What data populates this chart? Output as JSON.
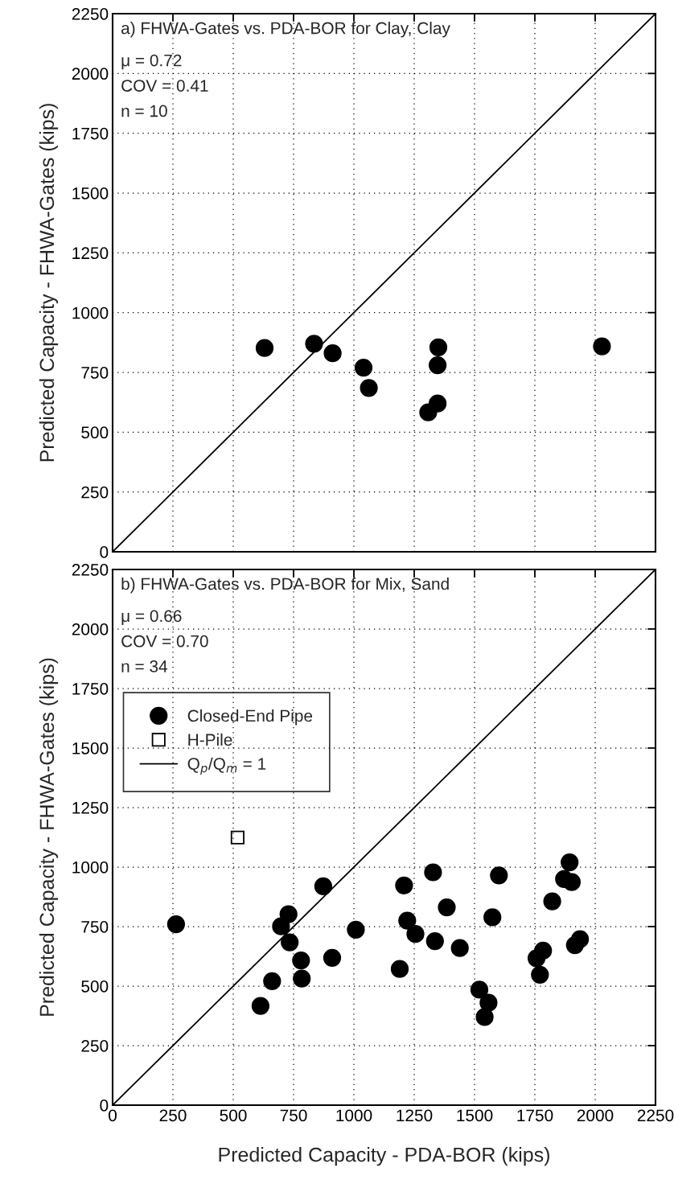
{
  "chart_data": [
    {
      "type": "scatter",
      "title": "a) FHWA-Gates vs. PDA-BOR for Clay, Clay",
      "ylabel": "Predicted Capacity - FHWA-Gates (kips)",
      "annotations": [
        "μ = 0.72",
        "COV = 0.41",
        "n = 10"
      ],
      "xlim": [
        0,
        2250
      ],
      "ylim": [
        0,
        2250
      ],
      "xticks": [
        0,
        250,
        500,
        750,
        1000,
        1250,
        1500,
        1750,
        2000,
        2250
      ],
      "yticks": [
        0,
        250,
        500,
        750,
        1000,
        1250,
        1500,
        1750,
        2000,
        2250
      ],
      "grid": true,
      "legend": false,
      "tick_labels": "y",
      "series": [
        {
          "marker": "circle",
          "color": "#000000",
          "x": [
            630,
            835,
            912,
            1040,
            1062,
            1350,
            1347,
            1347,
            1308,
            2028
          ],
          "values": [
            852,
            870,
            830,
            770,
            685,
            855,
            780,
            620,
            583,
            859
          ]
        },
        {
          "type": "line",
          "marker": "none",
          "line_style": "solid",
          "color": "#000000",
          "x": [
            0,
            2250
          ],
          "values": [
            0,
            2250
          ]
        }
      ]
    },
    {
      "type": "scatter",
      "title": "b) FHWA-Gates vs. PDA-BOR for Mix, Sand",
      "xlabel": "Predicted Capacity - PDA-BOR (kips)",
      "ylabel": "Predicted Capacity - FHWA-Gates (kips)",
      "annotations": [
        "μ = 0.66",
        "COV = 0.70",
        "n = 34"
      ],
      "xlim": [
        0,
        2250
      ],
      "ylim": [
        0,
        2250
      ],
      "xticks": [
        0,
        250,
        500,
        750,
        1000,
        1250,
        1500,
        1750,
        2000,
        2250
      ],
      "yticks": [
        0,
        250,
        500,
        750,
        1000,
        1250,
        1500,
        1750,
        2000,
        2250
      ],
      "grid": true,
      "legend": "top left",
      "series": [
        {
          "name": "Closed-End Pipe",
          "marker": "circle",
          "color": "#000000",
          "x": [
            263,
            873,
            729,
            698,
            734,
            781,
            784,
            661,
            613,
            910,
            1008,
            1190,
            1208,
            1328,
            1601,
            1894,
            1871,
            1903,
            1822,
            1385,
            1574,
            1221,
            1255,
            1336,
            1439,
            1937,
            1916,
            1784,
            1757,
            1771,
            1520,
            1558,
            1542
          ],
          "values": [
            760,
            919,
            802,
            751,
            684,
            608,
            532,
            521,
            417,
            619,
            737,
            572,
            923,
            978,
            965,
            1020,
            950,
            937,
            856,
            831,
            789,
            775,
            719,
            689,
            660,
            697,
            672,
            649,
            617,
            548,
            485,
            430,
            370
          ]
        },
        {
          "name": "H-Pile",
          "marker": "square",
          "color": "#000000",
          "x": [
            518
          ],
          "values": [
            1124
          ]
        },
        {
          "name": "Q$_{p}$/Q$_{m}$ = 1",
          "type": "line",
          "marker": "none",
          "line_style": "solid",
          "color": "#000000",
          "x": [
            0,
            2250
          ],
          "values": [
            0,
            2250
          ]
        }
      ]
    }
  ]
}
